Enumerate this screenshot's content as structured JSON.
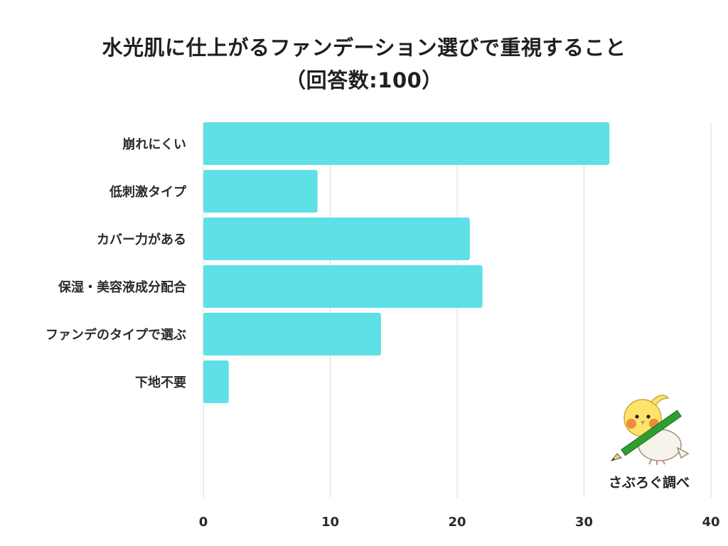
{
  "title_line1": "水光肌に仕上がるファンデーション選びで重視すること",
  "title_line2": "（回答数:100）",
  "brand_label": "さぶろぐ調べ",
  "mascot_icon": "cockatiel-with-pencil-icon",
  "colors": {
    "bar": "#5ee0e6",
    "grid": "#d9d9d9",
    "text": "#2a2a2a"
  },
  "chart_data": {
    "type": "bar",
    "orientation": "horizontal",
    "title": "水光肌に仕上がるファンデーション選びで重視すること（回答数:100）",
    "categories": [
      "崩れにくい",
      "低刺激タイプ",
      "カバー力がある",
      "保湿・美容液成分配合",
      "ファンデのタイプで選ぶ",
      "下地不要"
    ],
    "values": [
      32,
      9,
      21,
      22,
      14,
      2
    ],
    "xlim": [
      0,
      40
    ],
    "xticks": [
      0,
      10,
      20,
      30,
      40
    ],
    "grid": true,
    "xlabel": "",
    "ylabel": ""
  }
}
